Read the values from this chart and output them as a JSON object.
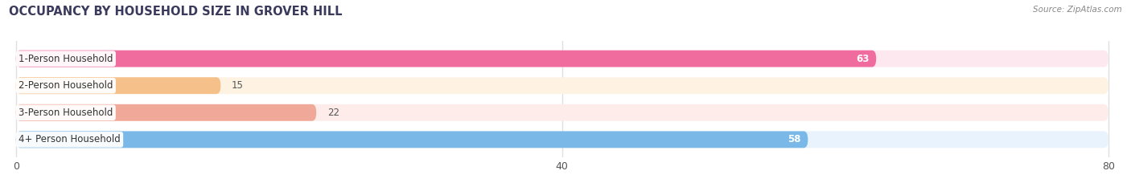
{
  "title": "OCCUPANCY BY HOUSEHOLD SIZE IN GROVER HILL",
  "source": "Source: ZipAtlas.com",
  "categories": [
    "1-Person Household",
    "2-Person Household",
    "3-Person Household",
    "4+ Person Household"
  ],
  "values": [
    63,
    15,
    22,
    58
  ],
  "bar_colors": [
    "#f06b9e",
    "#f5c08a",
    "#f0a898",
    "#7ab8e8"
  ],
  "bar_bg_colors": [
    "#fde8f0",
    "#fef3e2",
    "#fdecea",
    "#e8f3fd"
  ],
  "xlim": [
    0,
    80
  ],
  "xticks": [
    0,
    40,
    80
  ],
  "background_color": "#ffffff",
  "bar_height": 0.62,
  "label_fontsize": 8.5,
  "value_fontsize": 8.5,
  "title_fontsize": 10.5,
  "title_color": "#3a3a5c",
  "source_color": "#888888"
}
